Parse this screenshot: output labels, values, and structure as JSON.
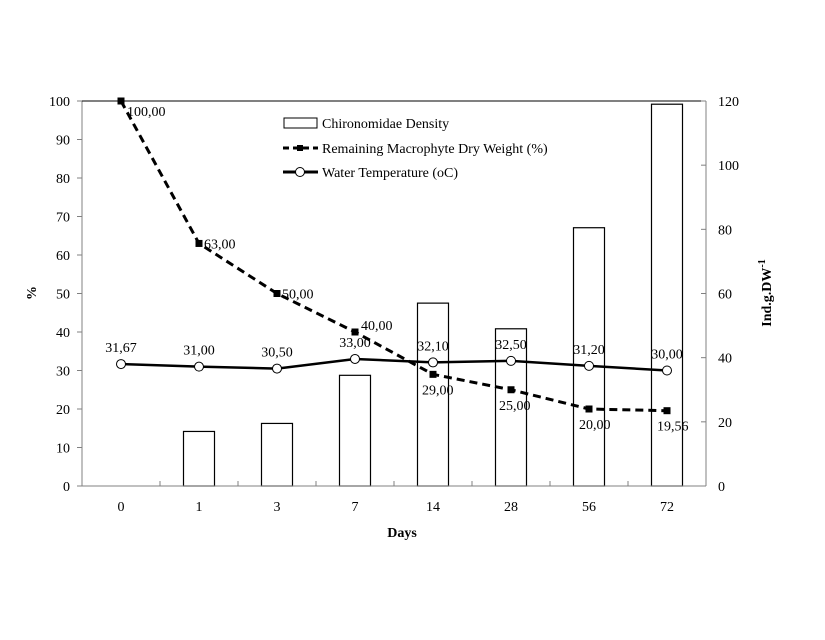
{
  "chart_data": {
    "type": "bar+line",
    "categories": [
      "0",
      "1",
      "3",
      "7",
      "14",
      "28",
      "56",
      "72"
    ],
    "xlabel": "Days",
    "ylabel_left": "%",
    "ylabel_right": "Ind.g.DW",
    "ylabel_right_sup": "-1",
    "ylim_left": [
      0,
      100
    ],
    "ylim_right": [
      0,
      120
    ],
    "yticks_left": [
      "0",
      "10",
      "20",
      "30",
      "40",
      "50",
      "60",
      "70",
      "80",
      "90",
      "100"
    ],
    "yticks_right": [
      "0",
      "20",
      "40",
      "60",
      "80",
      "100",
      "120"
    ],
    "grid": false,
    "legend_position": "top-center",
    "series": [
      {
        "name": "Chironomidae Density",
        "type": "bar",
        "axis": "right",
        "values": [
          0,
          17,
          19.5,
          34.5,
          57,
          49,
          80.5,
          119
        ]
      },
      {
        "name": "Remaining Macrophyte Dry Weight  (%)",
        "type": "line",
        "style": "dashed",
        "marker": "square",
        "axis": "left",
        "values": [
          100,
          63,
          50,
          40,
          29,
          25,
          20,
          19.56
        ],
        "labels": [
          "100,00",
          "63,00",
          "50,00",
          "40,00",
          "29,00",
          "25,00",
          "20,00",
          "19,56"
        ]
      },
      {
        "name": "Water Temperature (oC)",
        "type": "line",
        "style": "solid",
        "marker": "circle-open",
        "axis": "left",
        "values": [
          31.67,
          31,
          30.5,
          33,
          32.1,
          32.5,
          31.2,
          30
        ],
        "labels": [
          "31,67",
          "31,00",
          "30,50",
          "33,00",
          "32,10",
          "32,50",
          "31,20",
          "30,00"
        ]
      }
    ],
    "colors": {
      "line": "#000000",
      "bar_fill": "#ffffff",
      "axis": "#808080"
    }
  }
}
